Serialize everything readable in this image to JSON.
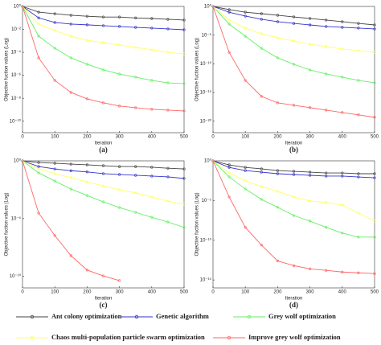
{
  "chart_data": [
    {
      "type": "line",
      "caption": "(a)",
      "xlabel": "Iteration",
      "ylabel": "Objective fuction values (Log)",
      "yscale": "log",
      "x": [
        0,
        50,
        100,
        150,
        200,
        250,
        300,
        350,
        400,
        450,
        500
      ],
      "xlim": [
        0,
        500
      ],
      "xticks": [
        0,
        100,
        200,
        300,
        400,
        500
      ],
      "ylim": [
        1e-11,
        1
      ],
      "yticks": [
        {
          "value": 1,
          "label": "10⁰"
        },
        {
          "value": 0.01,
          "label": "10⁻²"
        },
        {
          "value": 0.0001,
          "label": "10⁻⁴"
        },
        {
          "value": 1e-06,
          "label": "10⁻⁶"
        },
        {
          "value": 1e-08,
          "label": "10⁻⁸"
        },
        {
          "value": 1e-10,
          "label": "10⁻¹⁰"
        }
      ],
      "series": [
        {
          "name": "Ant colony optimization",
          "color": "#444444",
          "values": [
            1,
            0.32,
            0.23,
            0.17,
            0.14,
            0.12,
            0.12,
            0.1,
            0.089,
            0.076,
            0.065
          ]
        },
        {
          "name": "Genetic algorithm",
          "color": "#3333cc",
          "values": [
            1,
            0.1,
            0.04,
            0.029,
            0.025,
            0.021,
            0.018,
            0.015,
            0.013,
            0.011,
            0.0093
          ]
        },
        {
          "name": "Grey wolf optimization",
          "color": "#66ee66",
          "values": [
            1,
            0.0026,
            0.00023,
            3.3e-05,
            9.1e-06,
            3e-06,
            1.3e-06,
            6.9e-07,
            3.6e-07,
            2.2e-07,
            1.9e-07
          ]
        },
        {
          "name": "Chaos multi-population particle swarm optimization",
          "color": "#ffff66",
          "values": [
            1,
            0.029,
            0.008,
            0.0026,
            0.0011,
            0.0007,
            0.00044,
            0.00027,
            0.00017,
            0.0001,
            7.4e-05
          ]
        },
        {
          "name": "Improve grey wolf optimization",
          "color": "#ff6666",
          "values": [
            1,
            3.3e-05,
            3.6e-07,
            3.2e-08,
            8.9e-09,
            4e-09,
            2.1e-09,
            1.5e-09,
            1.1e-09,
            9.3e-10,
            7.9e-10
          ]
        }
      ]
    },
    {
      "type": "line",
      "caption": "(b)",
      "xlabel": "Iteration",
      "ylabel": "Objective fuction values (Log)",
      "yscale": "log",
      "x": [
        0,
        50,
        100,
        150,
        200,
        250,
        300,
        350,
        400,
        450,
        500
      ],
      "xlim": [
        0,
        500
      ],
      "xticks": [
        0,
        100,
        200,
        300,
        400,
        500
      ],
      "ylim": [
        1e-22,
        1
      ],
      "yticks": [
        {
          "value": 1,
          "label": "10⁰"
        },
        {
          "value": 1e-05,
          "label": "10⁻⁵"
        },
        {
          "value": 1e-10,
          "label": "10⁻¹⁰"
        },
        {
          "value": 1e-15,
          "label": "10⁻¹⁵"
        },
        {
          "value": 1e-20,
          "label": "10⁻²⁰"
        }
      ],
      "series": [
        {
          "name": "Ant colony optimization",
          "color": "#444444",
          "values": [
            1,
            0.28,
            0.1,
            0.055,
            0.029,
            0.015,
            0.008,
            0.0042,
            0.0022,
            0.0011,
            0.0006
          ]
        },
        {
          "name": "Genetic algorithm",
          "color": "#3333cc",
          "values": [
            1,
            0.1,
            0.021,
            0.0058,
            0.0022,
            0.0011,
            0.0006,
            0.00032,
            0.00023,
            0.00017,
            0.00012
          ]
        },
        {
          "name": "Grey wolf optimization",
          "color": "#66ee66",
          "values": [
            1,
            0.00083,
            6.6e-06,
            5.2e-08,
            1.1e-09,
            8.3e-11,
            8.7e-12,
            1.7e-12,
            4.8e-13,
            1.3e-13,
            5e-14
          ]
        },
        {
          "name": "Chaos multi-population particle swarm optimization",
          "color": "#ffff66",
          "values": [
            1,
            0.0042,
            0.00017,
            1.7e-05,
            3.5e-06,
            9.5e-07,
            2.6e-07,
            1e-07,
            3.8e-08,
            2e-08,
            1e-08
          ]
        },
        {
          "name": "Improve grey wolf optimization",
          "color": "#ff6666",
          "values": [
            1,
            1e-08,
            1.3e-13,
            2.1e-16,
            1.6e-17,
            6e-18,
            2.3e-18,
            8.7e-19,
            3.3e-19,
            1.3e-19,
            4.8e-20
          ]
        }
      ]
    },
    {
      "type": "line",
      "caption": "(c)",
      "xlabel": "Iteration",
      "ylabel": "Objective fuction values (Log)",
      "yscale": "log",
      "x": [
        0,
        50,
        100,
        150,
        200,
        250,
        300,
        350,
        400,
        450,
        500
      ],
      "xlim": [
        0,
        500
      ],
      "xticks": [
        0,
        100,
        200,
        300,
        400,
        500
      ],
      "ylim": [
        1e-11,
        1
      ],
      "yticks": [
        {
          "value": 1,
          "label": "10⁰"
        },
        {
          "value": 1e-05,
          "label": "10⁻⁵"
        },
        {
          "value": 1e-10,
          "label": "10⁻¹⁰"
        }
      ],
      "series": [
        {
          "name": "Ant colony optimization",
          "color": "#444444",
          "values": [
            1,
            0.72,
            0.62,
            0.52,
            0.45,
            0.38,
            0.32,
            0.32,
            0.28,
            0.23,
            0.2
          ]
        },
        {
          "name": "Genetic algorithm",
          "color": "#3333cc",
          "values": [
            1,
            0.32,
            0.2,
            0.14,
            0.11,
            0.078,
            0.066,
            0.056,
            0.048,
            0.041,
            0.03
          ]
        },
        {
          "name": "Grey wolf optimization",
          "color": "#66ee66",
          "values": [
            1,
            0.091,
            0.018,
            0.0036,
            0.001,
            0.00028,
            9.1e-05,
            3.5e-05,
            1.3e-05,
            5.1e-06,
            1.7e-06
          ]
        },
        {
          "name": "Chaos multi-population particle swarm optimization",
          "color": "#ffff66",
          "values": [
            1,
            0.2,
            0.078,
            0.035,
            0.015,
            0.0069,
            0.0031,
            0.0017,
            0.00074,
            0.00033,
            0.00017
          ]
        },
        {
          "name": "Improve grey wolf optimization",
          "color": "#ff6666",
          "values": [
            1,
            3e-05,
            3.4e-07,
            6.2e-09,
            3.5e-10,
            1.1e-10,
            4.3e-11,
            null,
            null,
            null,
            null
          ]
        }
      ]
    },
    {
      "type": "line",
      "caption": "(d)",
      "xlabel": "Iteration",
      "ylabel": "Objective fuction values (Log)",
      "yscale": "log",
      "x": [
        0,
        50,
        100,
        150,
        200,
        250,
        300,
        350,
        400,
        450,
        500
      ],
      "xlim": [
        0,
        500
      ],
      "xticks": [
        0,
        100,
        200,
        300,
        400,
        500
      ],
      "ylim": [
        1e-16,
        1
      ],
      "yticks": [
        {
          "value": 1,
          "label": "10⁰"
        },
        {
          "value": 1e-05,
          "label": "10⁻⁵"
        },
        {
          "value": 1e-10,
          "label": "10⁻¹⁰"
        },
        {
          "value": 1e-15,
          "label": "10⁻¹⁵"
        }
      ],
      "series": [
        {
          "name": "Ant colony optimization",
          "color": "#444444",
          "values": [
            1,
            0.31,
            0.15,
            0.098,
            0.06,
            0.048,
            0.038,
            0.03,
            0.03,
            0.024,
            0.024
          ]
        },
        {
          "name": "Genetic algorithm",
          "color": "#3333cc",
          "values": [
            1,
            0.15,
            0.06,
            0.038,
            0.024,
            0.019,
            0.015,
            0.012,
            0.012,
            0.0093,
            0.0074
          ]
        },
        {
          "name": "Grey wolf optimization",
          "color": "#66ee66",
          "values": [
            1,
            0.0095,
            0.00029,
            1.4e-05,
            1.4e-06,
            1.3e-07,
            2.6e-08,
            4.2e-09,
            8.1e-10,
            2.5e-10,
            2.5e-10
          ]
        },
        {
          "name": "Chaos multi-population particle swarm optimization",
          "color": "#ffff66",
          "values": [
            1,
            0.03,
            0.003,
            0.00058,
            0.00014,
            2.8e-05,
            8.9e-06,
            5.6e-06,
            2.8e-06,
            2.7e-07,
            2.6e-08
          ]
        },
        {
          "name": "Improve grey wolf optimization",
          "color": "#ff6666",
          "values": [
            1,
            2.8e-05,
            4.2e-09,
            2.5e-11,
            2.5e-13,
            6.3e-14,
            2.5e-14,
            1.6e-14,
            1e-14,
            7.9e-15,
            6.3e-15
          ]
        }
      ]
    }
  ]
}
